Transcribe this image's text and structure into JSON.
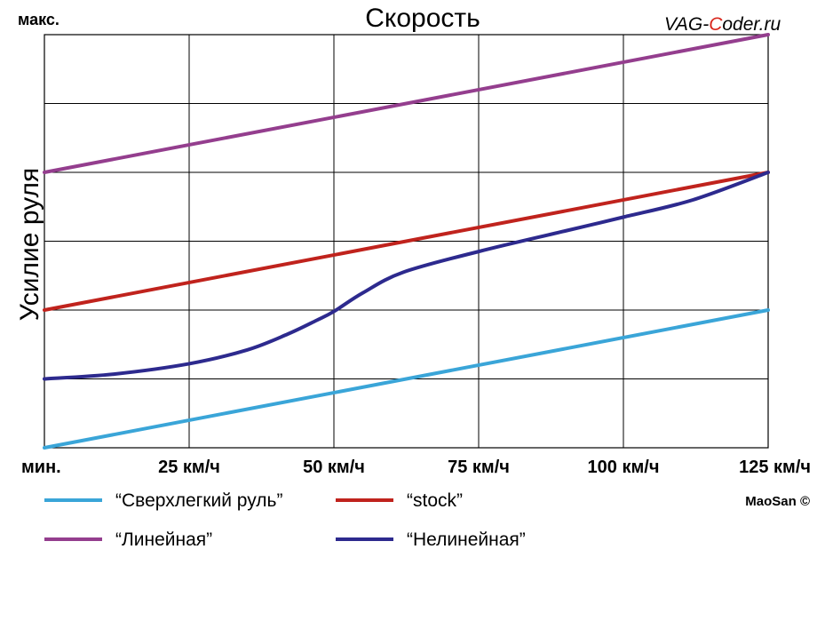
{
  "watermark": {
    "prefix": "VAG-",
    "accent": "C",
    "suffix": "oder.ru",
    "accent_color": "#d8261c"
  },
  "credit": "MaoSan ©",
  "chart_data": {
    "type": "line",
    "title": "Скорость",
    "ylabel": "Усилие руля",
    "y_top_label": "макс.",
    "x_start_label": "мин.",
    "x": [
      0,
      25,
      50,
      75,
      100,
      125
    ],
    "x_tick_labels": [
      "25 км/ч",
      "50 км/ч",
      "75 км/ч",
      "100 км/ч",
      "125 км/ч"
    ],
    "xlim": [
      0,
      125
    ],
    "ylim": [
      0,
      6
    ],
    "grid": true,
    "legend_position": "bottom",
    "series": [
      {
        "name": "“Сверхлегкий руль”",
        "color": "#3aa5d8",
        "x": [
          0,
          125
        ],
        "values": [
          0,
          2
        ]
      },
      {
        "name": "“stock”",
        "color": "#c0231d",
        "x": [
          0,
          125
        ],
        "values": [
          2,
          4
        ]
      },
      {
        "name": "“Линейная”",
        "color": "#943e8e",
        "x": [
          0,
          125
        ],
        "values": [
          4,
          6
        ]
      },
      {
        "name": "“Нелинейная”",
        "color": "#2d2a8e",
        "x": [
          0,
          12,
          25,
          35,
          42,
          47,
          50,
          55,
          62,
          75,
          90,
          100,
          112,
          125
        ],
        "values": [
          1,
          1.07,
          1.22,
          1.42,
          1.65,
          1.85,
          1.98,
          2.25,
          2.55,
          2.85,
          3.15,
          3.35,
          3.6,
          4
        ]
      }
    ]
  }
}
